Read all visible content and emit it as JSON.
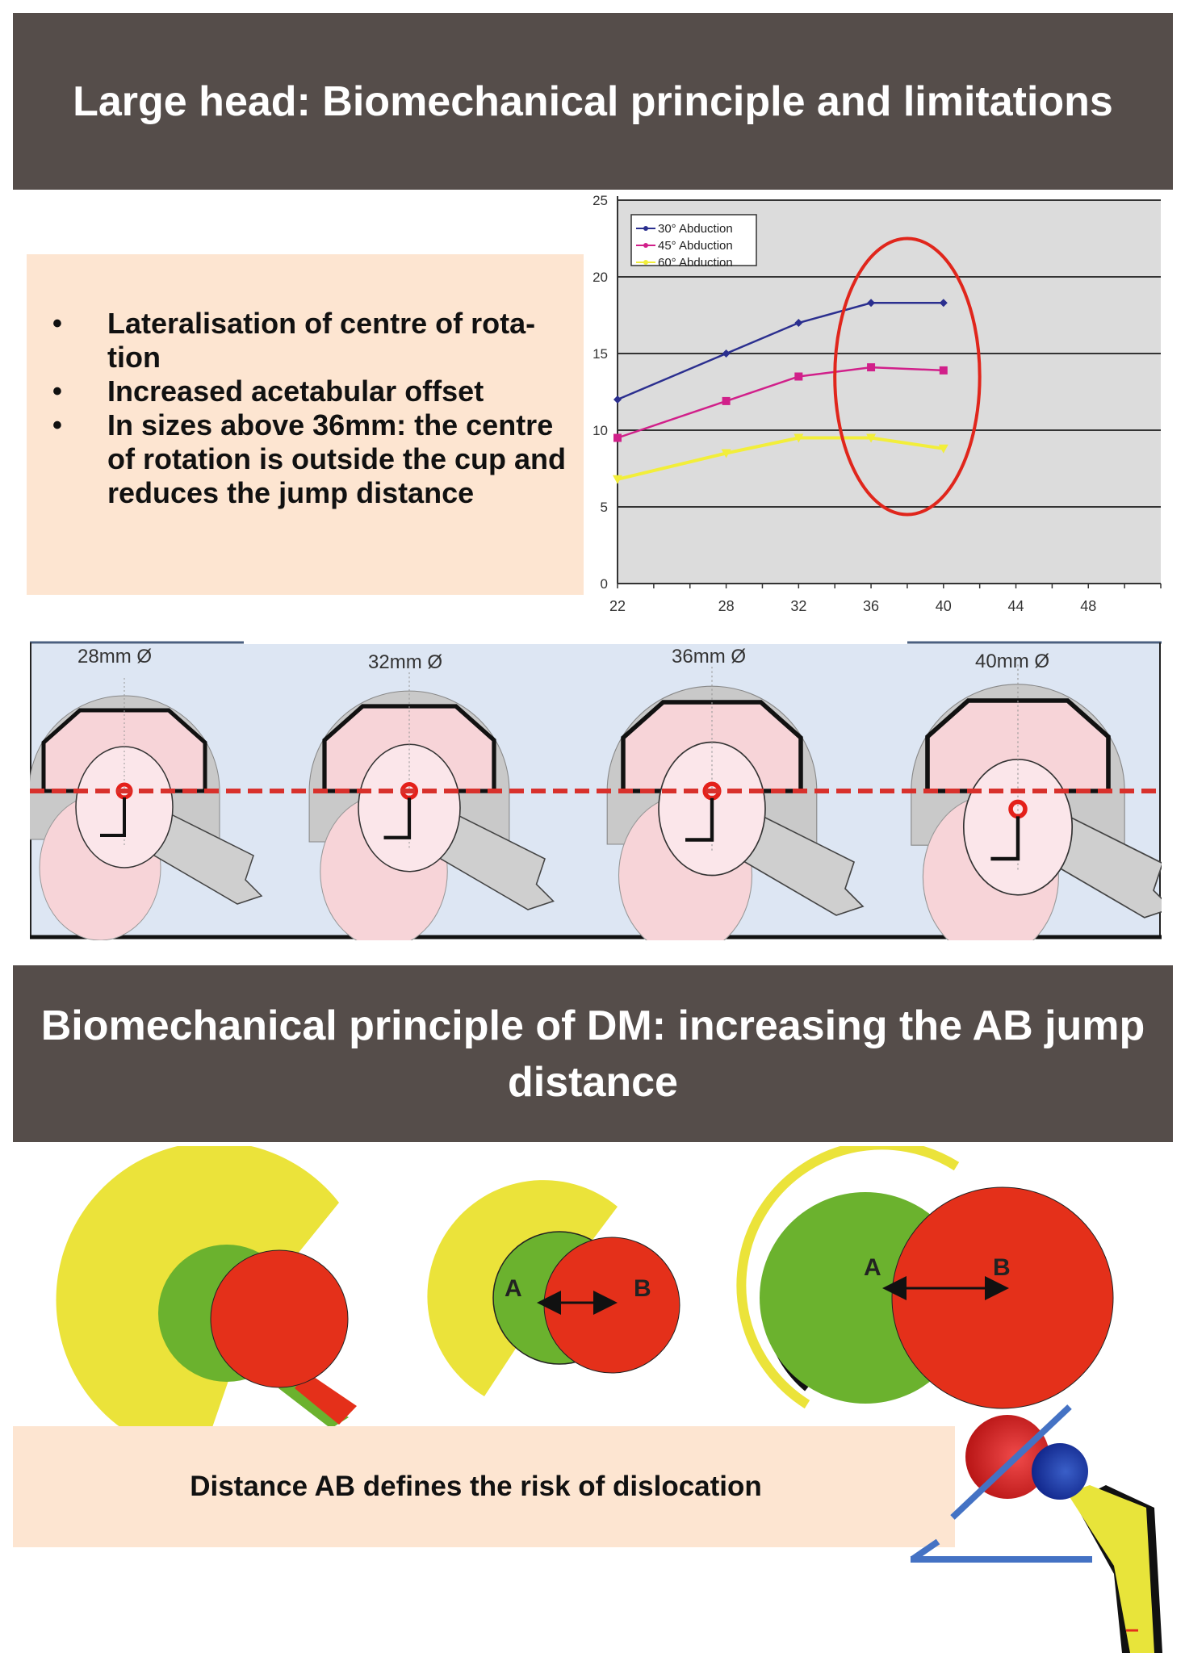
{
  "header1": {
    "title": "Large head: Biomechanical principle and limitations"
  },
  "bullets": [
    "Lateralisation of centre of rota-tion",
    "Increased acetabular offset",
    "In sizes above 36mm: the centre of rotation is outside the cup and reduces the jump distance"
  ],
  "chart_data": {
    "type": "line",
    "title": "",
    "xlabel": "",
    "ylabel": "",
    "x": [
      22,
      28,
      32,
      36,
      40
    ],
    "x_tick_labels": [
      "22",
      "28",
      "32",
      "36",
      "40",
      "44",
      "48"
    ],
    "y_tick_labels": [
      "0",
      "5",
      "10",
      "15",
      "20",
      "25"
    ],
    "xlim": [
      22,
      52
    ],
    "ylim": [
      0,
      25
    ],
    "grid": "horizontal",
    "legend_placement": "top-left",
    "series": [
      {
        "name": "30° Abduction",
        "values": [
          12,
          15,
          17,
          18.3,
          18.3
        ],
        "color": "#2b2f8f",
        "marker": "diamond"
      },
      {
        "name": "45° Abduction",
        "values": [
          9.5,
          11.9,
          13.5,
          14.1,
          13.9
        ],
        "color": "#d1208a",
        "marker": "square"
      },
      {
        "name": "60° Abduction",
        "values": [
          6.8,
          8.5,
          9.5,
          9.5,
          8.8
        ],
        "color": "#f2ee3a",
        "marker": "triangle"
      }
    ],
    "annotation": {
      "shape": "ellipse",
      "color": "#e0261c",
      "highlights_x": [
        36,
        40
      ]
    }
  },
  "diagram": {
    "labels": [
      "28mm Ø",
      "32mm Ø",
      "36mm Ø",
      "40mm Ø"
    ]
  },
  "header2": {
    "title": "Biomechanical principle of DM: increasing the AB jump distance"
  },
  "figures": {
    "a_label": "A",
    "b_label": "B"
  },
  "caption": "Distance AB defines the risk of dislocation",
  "colors": {
    "header_bg": "#554d4a",
    "panel_bg": "#fde5d1",
    "yellow": "#ebe33a",
    "green": "#6bb22e",
    "red": "#e4301a",
    "blue": "#4472c4"
  }
}
